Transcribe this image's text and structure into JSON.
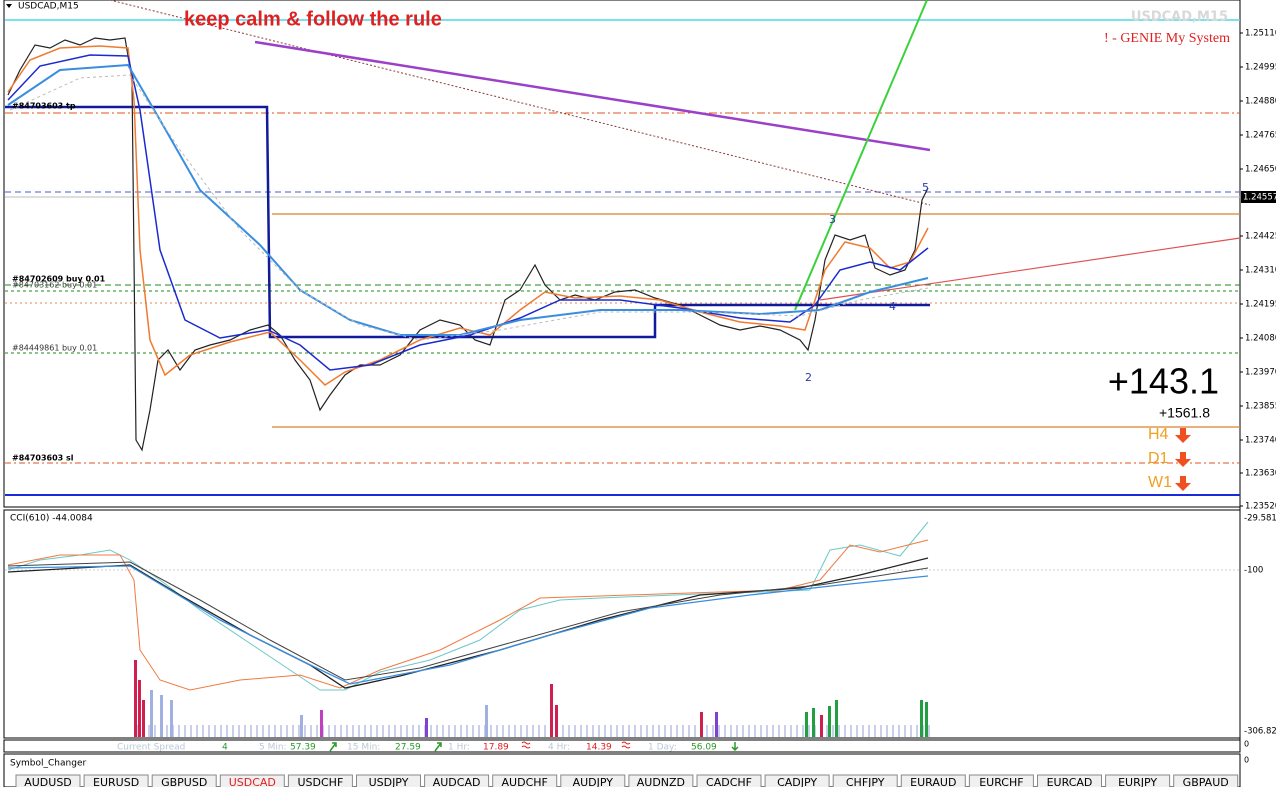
{
  "chart_window": {
    "symbol_label": "USDCAD,M15",
    "banner": "keep calm & follow the rule",
    "watermark": "USDCAD,M15",
    "system_name": "! - GENIE My System",
    "price_axis": [
      "1.25110",
      "1.24995",
      "1.24880",
      "1.24765",
      "1.24650",
      "1.24425",
      "1.24310",
      "1.24195",
      "1.24080",
      "1.23970",
      "1.23855",
      "1.23740",
      "1.23630",
      "1.23520"
    ],
    "current_price": "1.24557",
    "order_labels": [
      "#84703603 tp",
      "#84702609 buy 0.01",
      "#84703162 buy 0.01",
      "#84449861 buy 0.01",
      "#84703603 sl"
    ],
    "wave_labels": [
      "2",
      "3",
      "4",
      "5"
    ],
    "profit": "+143.1",
    "total_profit": "+1561.8",
    "trend": [
      "H4",
      "D1",
      "W1"
    ]
  },
  "cci_panel": {
    "title": "CCI(610) -44.0084",
    "scale": [
      "-29.5818",
      "-100",
      "-306.820"
    ]
  },
  "spread_bar": {
    "items": [
      "Current Spread",
      "4",
      "5 Min:",
      "57.39",
      "15 Min:",
      "27.59",
      "1 Hr:",
      "17.89",
      "4 Hr:",
      "14.39",
      "1 Day:",
      "56.09"
    ],
    "zero_labels": [
      "0",
      "0"
    ]
  },
  "symbol_changer": {
    "title": "Symbol_Changer",
    "symbols": [
      "AUDUSD",
      "EURUSD",
      "GBPUSD",
      "USDCAD",
      "USDCHF",
      "USDJPY",
      "AUDCAD",
      "AUDCHF",
      "AUDJPY",
      "AUDNZD",
      "CADCHF",
      "CADJPY",
      "CHFJPY",
      "EURAUD",
      "EURCHF",
      "EURCAD",
      "EURJPY",
      "GBPAUD"
    ]
  }
}
